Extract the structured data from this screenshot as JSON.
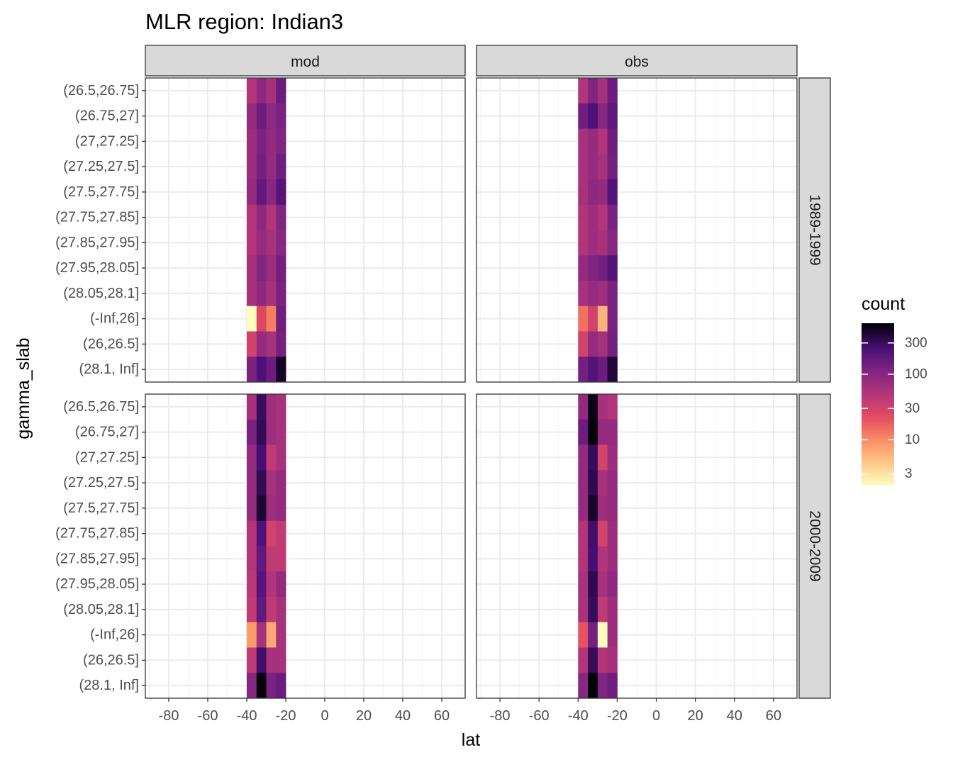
{
  "chart_data": {
    "type": "heatmap",
    "title": "MLR region:  Indian3",
    "xlabel": "lat",
    "ylabel": "gamma_slab",
    "xlim": [
      -92,
      72
    ],
    "x_ticks": [
      -80,
      -60,
      -40,
      -20,
      0,
      20,
      40,
      60
    ],
    "x_tick_labels": [
      "-80",
      "-60",
      "-40",
      "-20",
      "0",
      "20",
      "40",
      "60"
    ],
    "y_categories": [
      "(26.5,26.75]",
      "(26.75,27]",
      "(27,27.25]",
      "(27.25,27.5]",
      "(27.5,27.75]",
      "(27.75,27.85]",
      "(27.85,27.95]",
      "(27.95,28.05]",
      "(28.05,28.1]",
      "(-Inf,26]",
      "(26,26.5]",
      "(28.1, Inf]"
    ],
    "x_bins": [
      -37.5,
      -32.5,
      -27.5,
      -22.5
    ],
    "bin_width": 5,
    "columns": [
      "mod",
      "obs"
    ],
    "rows": [
      "1989-1999",
      "2000-2009"
    ],
    "color_scale": {
      "name": "count",
      "palette": "magma (reversed)",
      "transform": "log10",
      "breaks": [
        3,
        10,
        30,
        100,
        300
      ],
      "break_labels": [
        "3",
        "10",
        "30",
        "100",
        "300"
      ],
      "range": [
        2,
        600
      ],
      "position": "right"
    },
    "panels": [
      {
        "col": "mod",
        "row": "1989-1999",
        "values": [
          [
            50,
            90,
            60,
            150
          ],
          [
            80,
            150,
            90,
            120
          ],
          [
            70,
            120,
            80,
            110
          ],
          [
            70,
            130,
            80,
            140
          ],
          [
            80,
            170,
            100,
            200
          ],
          [
            50,
            90,
            50,
            110
          ],
          [
            50,
            80,
            60,
            100
          ],
          [
            60,
            110,
            70,
            130
          ],
          [
            60,
            90,
            60,
            120
          ],
          [
            2,
            25,
            12,
            140
          ],
          [
            30,
            80,
            60,
            130
          ],
          [
            120,
            230,
            150,
            450
          ]
        ]
      },
      {
        "col": "obs",
        "row": "1989-1999",
        "values": [
          [
            50,
            110,
            60,
            150
          ],
          [
            140,
            230,
            100,
            180
          ],
          [
            60,
            80,
            50,
            140
          ],
          [
            60,
            80,
            60,
            130
          ],
          [
            60,
            90,
            80,
            210
          ],
          [
            50,
            70,
            50,
            120
          ],
          [
            50,
            70,
            60,
            100
          ],
          [
            80,
            110,
            130,
            210
          ],
          [
            60,
            80,
            70,
            120
          ],
          [
            14,
            30,
            6,
            120
          ],
          [
            30,
            80,
            60,
            130
          ],
          [
            130,
            210,
            150,
            400
          ]
        ]
      },
      {
        "col": "mod",
        "row": "2000-2009",
        "values": [
          [
            60,
            300,
            70,
            60
          ],
          [
            120,
            320,
            70,
            60
          ],
          [
            80,
            250,
            40,
            60
          ],
          [
            80,
            320,
            60,
            80
          ],
          [
            80,
            420,
            70,
            80
          ],
          [
            50,
            220,
            30,
            40
          ],
          [
            50,
            170,
            40,
            40
          ],
          [
            45,
            200,
            50,
            80
          ],
          [
            40,
            170,
            40,
            60
          ],
          [
            8,
            60,
            7,
            60
          ],
          [
            40,
            270,
            60,
            60
          ],
          [
            100,
            560,
            120,
            150
          ]
        ]
      },
      {
        "col": "obs",
        "row": "2000-2009",
        "values": [
          [
            80,
            520,
            60,
            50
          ],
          [
            150,
            560,
            80,
            80
          ],
          [
            80,
            300,
            30,
            70
          ],
          [
            80,
            330,
            60,
            80
          ],
          [
            80,
            450,
            70,
            80
          ],
          [
            50,
            270,
            30,
            70
          ],
          [
            50,
            250,
            50,
            70
          ],
          [
            60,
            330,
            60,
            90
          ],
          [
            60,
            300,
            40,
            70
          ],
          [
            20,
            130,
            2,
            70
          ],
          [
            50,
            310,
            50,
            60
          ],
          [
            100,
            580,
            110,
            140
          ]
        ]
      }
    ]
  }
}
